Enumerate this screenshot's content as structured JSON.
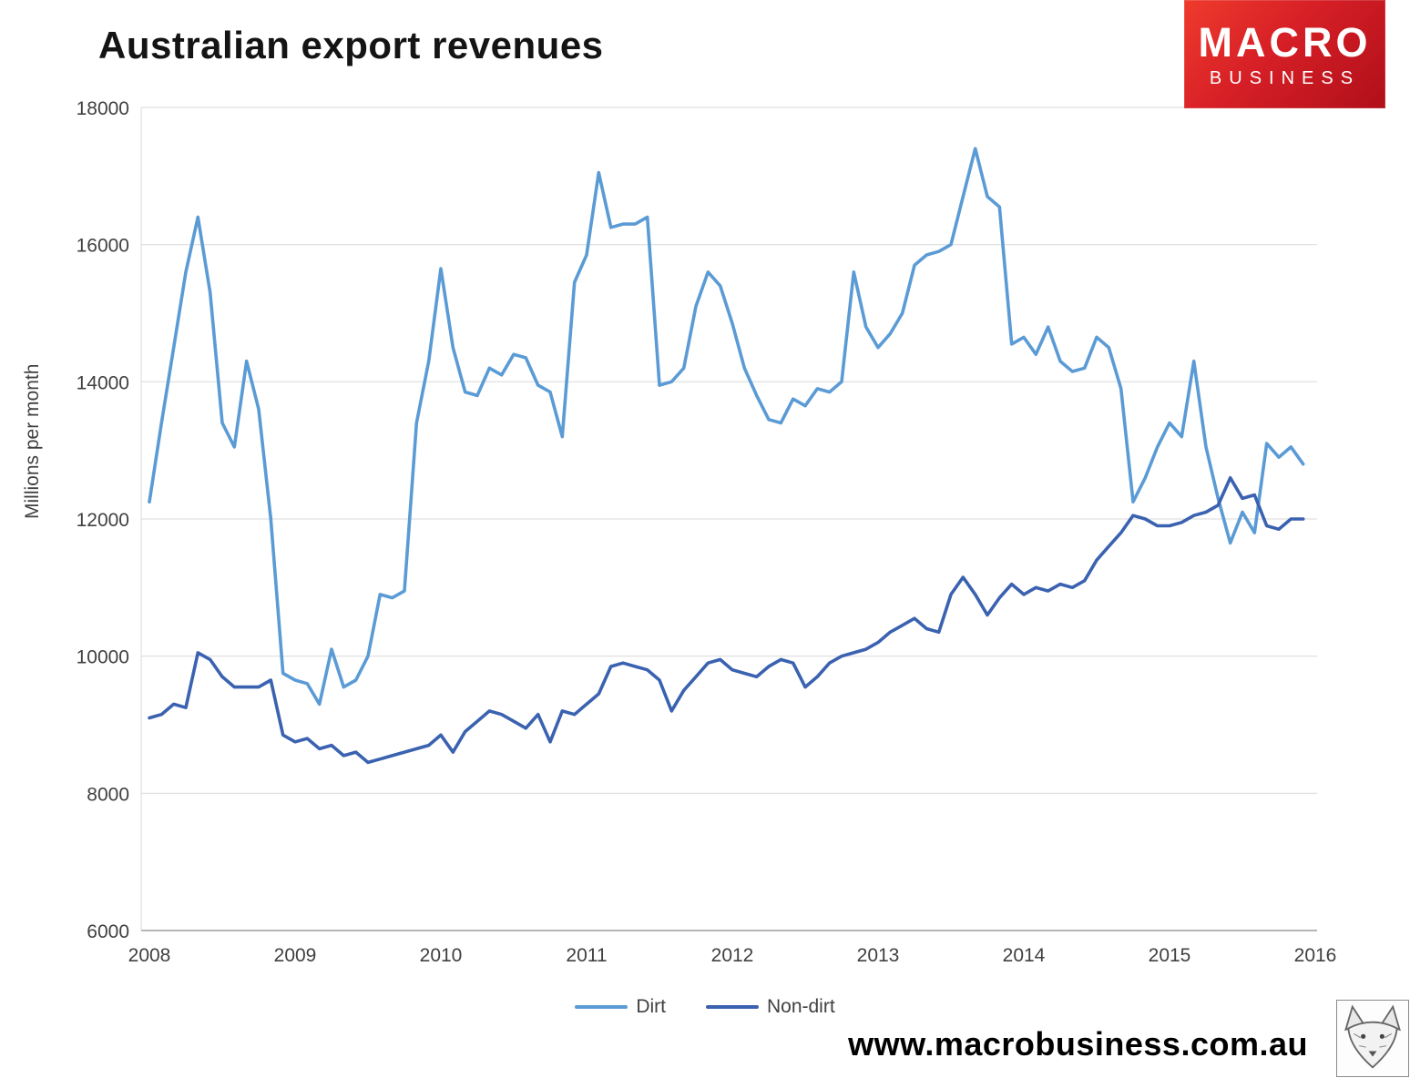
{
  "title": "Australian export revenues",
  "logo": {
    "line1": "MACRO",
    "line2": "BUSINESS",
    "background_color": "#d61f26",
    "text_color": "#ffffff"
  },
  "footer": {
    "url": "www.macrobusiness.com.au"
  },
  "legend": [
    {
      "label": "Dirt",
      "color": "#5B9BD5"
    },
    {
      "label": "Non-dirt",
      "color": "#3A62B0"
    }
  ],
  "chart_data": {
    "type": "line",
    "title": "Australian export revenues",
    "xlabel": "",
    "ylabel": "Millions per month",
    "ylim": [
      6000,
      18000
    ],
    "xlim": [
      2008,
      2016
    ],
    "y_ticks": [
      6000,
      8000,
      10000,
      12000,
      14000,
      16000,
      18000
    ],
    "x_ticks": [
      2008,
      2009,
      2010,
      2011,
      2012,
      2013,
      2014,
      2015,
      2016
    ],
    "x_start": "2008-01",
    "x_step_months": 1,
    "grid": "horizontal",
    "legend_position": "bottom",
    "series": [
      {
        "name": "Dirt",
        "color": "#5B9BD5",
        "values": [
          12250,
          13400,
          14500,
          15600,
          16400,
          15300,
          13400,
          13050,
          14300,
          13600,
          12000,
          9750,
          9650,
          9600,
          9300,
          10100,
          9550,
          9650,
          10000,
          10900,
          10850,
          10950,
          13400,
          14300,
          15650,
          14500,
          13850,
          13800,
          14200,
          14100,
          14400,
          14350,
          13950,
          13850,
          13200,
          15450,
          15850,
          17050,
          16250,
          16300,
          16300,
          16400,
          13950,
          14000,
          14200,
          15100,
          15600,
          15400,
          14850,
          14200,
          13800,
          13450,
          13400,
          13750,
          13650,
          13900,
          13850,
          14000,
          15600,
          14800,
          14500,
          14700,
          15000,
          15700,
          15850,
          15900,
          16000,
          16700,
          17400,
          16700,
          16550,
          14550,
          14650,
          14400,
          14800,
          14300,
          14150,
          14200,
          14650,
          14500,
          13900,
          12250,
          12600,
          13050,
          13400,
          13200,
          14300,
          13050,
          12300,
          11650,
          12100,
          11800,
          13100,
          12900,
          13050,
          12800
        ]
      },
      {
        "name": "Non-dirt",
        "color": "#3A62B0",
        "values": [
          9100,
          9150,
          9300,
          9250,
          10050,
          9950,
          9700,
          9550,
          9550,
          9550,
          9650,
          8850,
          8750,
          8800,
          8650,
          8700,
          8550,
          8600,
          8450,
          8500,
          8550,
          8600,
          8650,
          8700,
          8850,
          8600,
          8900,
          9050,
          9200,
          9150,
          9050,
          8950,
          9150,
          8750,
          9200,
          9150,
          9300,
          9450,
          9850,
          9900,
          9850,
          9800,
          9650,
          9200,
          9500,
          9700,
          9900,
          9950,
          9800,
          9750,
          9700,
          9850,
          9950,
          9900,
          9550,
          9700,
          9900,
          10000,
          10050,
          10100,
          10200,
          10350,
          10450,
          10550,
          10400,
          10350,
          10900,
          11150,
          10900,
          10600,
          10850,
          11050,
          10900,
          11000,
          10950,
          11050,
          11000,
          11100,
          11400,
          11600,
          11800,
          12050,
          12000,
          11900,
          11900,
          11950,
          12050,
          12100,
          12200,
          12600,
          12300,
          12350,
          11900,
          11850,
          12000,
          12000
        ]
      }
    ]
  }
}
